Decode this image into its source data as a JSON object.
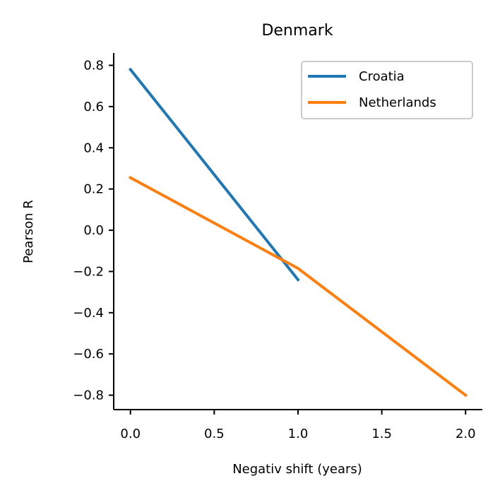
{
  "chart_data": {
    "type": "line",
    "title": "Denmark",
    "xlabel": "Negativ shift (years)",
    "ylabel": "Pearson R",
    "xlim": [
      -0.1,
      2.1
    ],
    "ylim": [
      -0.87,
      0.86
    ],
    "xticks": [
      0.0,
      0.5,
      1.0,
      1.5,
      2.0
    ],
    "xtick_labels": [
      "0.0",
      "0.5",
      "1.0",
      "1.5",
      "2.0"
    ],
    "yticks": [
      0.8,
      0.6,
      0.4,
      0.2,
      0.0,
      -0.2,
      -0.4,
      -0.6,
      -0.8
    ],
    "ytick_labels": [
      "0.8",
      "0.6",
      "0.4",
      "0.2",
      "0.0",
      "−0.2",
      "−0.4",
      "−0.6",
      "−0.8"
    ],
    "grid": false,
    "legend_position": "top-right",
    "series": [
      {
        "name": "Croatia",
        "color": "#1f77b4",
        "x": [
          0,
          1
        ],
        "y": [
          0.78,
          -0.24
        ]
      },
      {
        "name": "Netherlands",
        "color": "#ff7f0e",
        "x": [
          0,
          1,
          2
        ],
        "y": [
          0.255,
          -0.185,
          -0.8
        ]
      }
    ]
  }
}
